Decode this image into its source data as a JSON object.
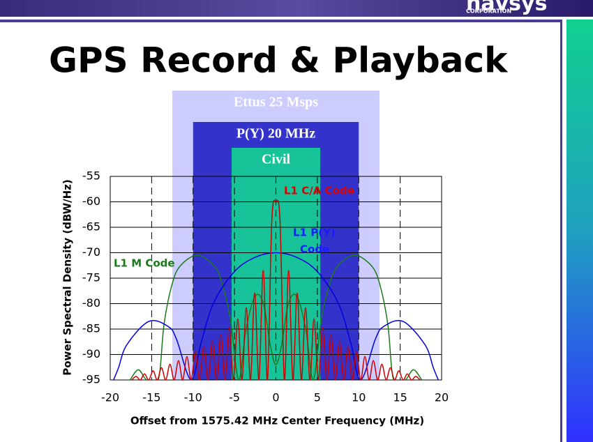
{
  "slide": {
    "logo": "navsys",
    "logo_sub": "CORPORATION",
    "title": "GPS Record & Playback"
  },
  "chart_data": {
    "type": "line",
    "xlabel": "Offset from 1575.42 MHz Center Frequency (MHz)",
    "ylabel": "Power Spectral Density (dBW/Hz)",
    "xlim": [
      -20,
      20
    ],
    "ylim": [
      -95,
      -55
    ],
    "xticks": [
      -20,
      -15,
      -10,
      -5,
      0,
      5,
      10,
      15,
      20
    ],
    "yticks": [
      -55,
      -60,
      -65,
      -70,
      -75,
      -80,
      -85,
      -90,
      -95
    ],
    "grid": true,
    "bands": [
      {
        "label": "Ettus  25 Msps",
        "range": [
          -12.5,
          12.5
        ],
        "color": "#ccccff",
        "text_color": "#1a1a4d"
      },
      {
        "label": "P(Y) 20 MHz",
        "range": [
          -10,
          10
        ],
        "color": "#3333cc",
        "text_color": "#ffffff"
      },
      {
        "label": "Civil",
        "range": [
          -5.35,
          5.35
        ],
        "color": "#19c39a",
        "text_color": "#1a1a4d"
      }
    ],
    "series": [
      {
        "name": "L1 M Code",
        "color": "#1a7a1a",
        "x": [
          -17.6,
          -16.6,
          -15.6,
          -14.2,
          -13.5,
          -12.5,
          -11.5,
          -9.5,
          -7.5,
          -6.5,
          -5.5,
          -4.5,
          -3.6,
          -2.5,
          -1.5,
          -0.7,
          0,
          0.7,
          1.5,
          2.5,
          3.6,
          4.5,
          5.5,
          6.5,
          7.5,
          9.5,
          11.5,
          12.5,
          13.5,
          14.2,
          15.6,
          16.6,
          17.6
        ],
        "values": [
          -95,
          -93,
          -95,
          -95,
          -84,
          -76,
          -72.5,
          -70.5,
          -72.5,
          -76,
          -83,
          -95,
          -85,
          -78.5,
          -80,
          -88,
          -92,
          -88,
          -80,
          -78.5,
          -85,
          -95,
          -83,
          -76,
          -72.5,
          -70.5,
          -72.5,
          -76,
          -84,
          -95,
          -95,
          -93,
          -95
        ]
      },
      {
        "name": "L1 P(Y) Code",
        "color": "#0000dd",
        "x": [
          -19.6,
          -19,
          -18,
          -15.35,
          -13,
          -12,
          -10.23,
          -9,
          -7.5,
          -5,
          -2.5,
          0,
          2.5,
          5,
          7.5,
          9,
          10.23,
          12,
          13,
          15.35,
          18,
          19,
          19.6
        ],
        "values": [
          -95,
          -92.6,
          -88.1,
          -83.5,
          -84.5,
          -87,
          -95,
          -87.5,
          -79.8,
          -73.7,
          -70.9,
          -70,
          -70.9,
          -73.7,
          -79.8,
          -87.5,
          -95,
          -87,
          -84.5,
          -83.5,
          -88.1,
          -92.6,
          -95
        ]
      },
      {
        "name": "L1 C/A Code",
        "color": "#cc0000",
        "x": [
          -17.39,
          -16.88,
          -16.37,
          -15.86,
          -15.35,
          -14.83,
          -14.32,
          -13.81,
          -13.3,
          -12.79,
          -12.28,
          -11.76,
          -11.25,
          -10.74,
          -10.23,
          -9.72,
          -9.21,
          -8.7,
          -8.18,
          -7.67,
          -7.16,
          -6.65,
          -6.14,
          -5.63,
          -5.12,
          -4.6,
          -4.09,
          -3.58,
          -3.07,
          -2.56,
          -2.05,
          -1.53,
          -1.02,
          -0.5,
          0,
          0.5,
          1.02,
          1.53,
          2.05,
          2.56,
          3.07,
          3.58,
          4.09,
          4.6,
          5.12,
          5.63,
          6.14,
          6.65,
          7.16,
          7.67,
          8.18,
          8.7,
          9.21,
          9.72,
          10.23,
          10.74,
          11.25,
          11.76,
          12.28,
          12.79,
          13.3,
          13.81,
          14.32,
          14.83,
          15.35,
          15.86,
          16.37,
          16.88,
          17.39
        ],
        "values": [
          -95,
          -94.3,
          -95,
          -93.8,
          -95,
          -93.2,
          -95,
          -92.6,
          -95,
          -91.9,
          -95,
          -91.2,
          -95,
          -90.4,
          -95,
          -89.5,
          -95,
          -88.5,
          -95,
          -87.4,
          -95,
          -86.2,
          -95,
          -84.8,
          -95,
          -83,
          -95,
          -80.8,
          -95,
          -77.9,
          -95,
          -73.5,
          -95,
          -63.9,
          -60,
          -63.9,
          -95,
          -73.5,
          -95,
          -77.9,
          -95,
          -80.8,
          -95,
          -83,
          -95,
          -84.8,
          -95,
          -86.2,
          -95,
          -87.4,
          -95,
          -88.5,
          -95,
          -89.5,
          -95,
          -90.4,
          -95,
          -91.2,
          -95,
          -91.9,
          -95,
          -92.6,
          -95,
          -93.2,
          -95,
          -93.8,
          -95,
          -94.3,
          -95
        ]
      }
    ],
    "annotations": [
      {
        "text": "L1 C/A Code",
        "color": "#dd0000"
      },
      {
        "text": "L1 P(Y)",
        "color": "#1a1aff"
      },
      {
        "text": "Code",
        "color": "#1a1aff"
      },
      {
        "text": "L1 M Code",
        "color": "#1a7a1a"
      }
    ]
  }
}
